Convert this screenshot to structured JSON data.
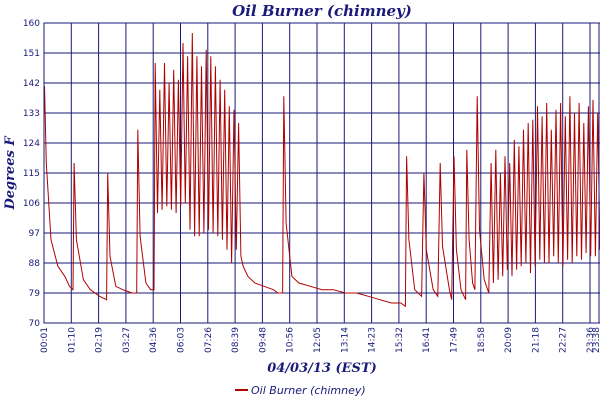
{
  "chart_data": {
    "type": "line",
    "title": "Oil Burner (chimney)",
    "xlabel": "04/03/13 (EST)",
    "ylabel": "Degrees F",
    "ylim": [
      70,
      160
    ],
    "yticks": [
      "70",
      "79",
      "88",
      "97",
      "106",
      "115",
      "124",
      "133",
      "142",
      "151",
      "160"
    ],
    "xticks": [
      "00:01",
      "01:10",
      "02:19",
      "03:27",
      "04:36",
      "06:03",
      "07:26",
      "08:39",
      "09:48",
      "10:56",
      "12:05",
      "13:14",
      "14:23",
      "15:32",
      "16:41",
      "17:49",
      "18:58",
      "20:09",
      "21:18",
      "22:27",
      "23:36",
      "23:38"
    ],
    "grid": true,
    "legend_position": "bottom",
    "series": [
      {
        "name": "Oil Burner (chimney)",
        "color": "#b00000",
        "points": [
          [
            0.02,
            141
          ],
          [
            0.1,
            118
          ],
          [
            0.3,
            95
          ],
          [
            0.6,
            87
          ],
          [
            0.9,
            84
          ],
          [
            1.1,
            81
          ],
          [
            1.25,
            80
          ],
          [
            1.3,
            118
          ],
          [
            1.4,
            95
          ],
          [
            1.7,
            83
          ],
          [
            2.0,
            80
          ],
          [
            2.4,
            78
          ],
          [
            2.7,
            77
          ],
          [
            2.75,
            115
          ],
          [
            2.85,
            90
          ],
          [
            3.1,
            81
          ],
          [
            3.4,
            80
          ],
          [
            3.8,
            79
          ],
          [
            4.0,
            79
          ],
          [
            4.05,
            128
          ],
          [
            4.15,
            96
          ],
          [
            4.4,
            82
          ],
          [
            4.6,
            80
          ],
          [
            4.75,
            80
          ],
          [
            4.8,
            148
          ],
          [
            4.9,
            103
          ],
          [
            5.0,
            140
          ],
          [
            5.1,
            104
          ],
          [
            5.2,
            148
          ],
          [
            5.3,
            105
          ],
          [
            5.4,
            142
          ],
          [
            5.5,
            104
          ],
          [
            5.6,
            146
          ],
          [
            5.7,
            103
          ],
          [
            5.8,
            143
          ],
          [
            5.9,
            105
          ],
          [
            6.0,
            154
          ],
          [
            6.1,
            106
          ],
          [
            6.2,
            150
          ],
          [
            6.3,
            98
          ],
          [
            6.4,
            157
          ],
          [
            6.5,
            96
          ],
          [
            6.6,
            150
          ],
          [
            6.7,
            96
          ],
          [
            6.8,
            147
          ],
          [
            6.9,
            97
          ],
          [
            7.0,
            152
          ],
          [
            7.1,
            98
          ],
          [
            7.2,
            150
          ],
          [
            7.3,
            97
          ],
          [
            7.4,
            147
          ],
          [
            7.5,
            96
          ],
          [
            7.6,
            143
          ],
          [
            7.7,
            95
          ],
          [
            7.8,
            140
          ],
          [
            7.9,
            92
          ],
          [
            8.0,
            135
          ],
          [
            8.1,
            88
          ],
          [
            8.2,
            134
          ],
          [
            8.3,
            92
          ],
          [
            8.4,
            130
          ],
          [
            8.5,
            90
          ],
          [
            8.6,
            87
          ],
          [
            8.8,
            84
          ],
          [
            9.1,
            82
          ],
          [
            9.5,
            81
          ],
          [
            9.9,
            80
          ],
          [
            10.1,
            79
          ],
          [
            10.3,
            79
          ],
          [
            10.35,
            138
          ],
          [
            10.45,
            100
          ],
          [
            10.7,
            84
          ],
          [
            11.0,
            82
          ],
          [
            11.5,
            81
          ],
          [
            12.0,
            80
          ],
          [
            12.5,
            80
          ],
          [
            13.0,
            79
          ],
          [
            13.5,
            79
          ],
          [
            14.0,
            78
          ],
          [
            14.5,
            77
          ],
          [
            15.0,
            76
          ],
          [
            15.4,
            76
          ],
          [
            15.6,
            75
          ],
          [
            15.65,
            120
          ],
          [
            15.75,
            95
          ],
          [
            16.0,
            80
          ],
          [
            16.3,
            78
          ],
          [
            16.4,
            115
          ],
          [
            16.5,
            92
          ],
          [
            16.8,
            80
          ],
          [
            17.0,
            78
          ],
          [
            17.1,
            118
          ],
          [
            17.2,
            93
          ],
          [
            17.5,
            80
          ],
          [
            17.6,
            77
          ],
          [
            17.7,
            120
          ],
          [
            17.8,
            92
          ],
          [
            18.0,
            80
          ],
          [
            18.2,
            77
          ],
          [
            18.25,
            122
          ],
          [
            18.35,
            95
          ],
          [
            18.5,
            82
          ],
          [
            18.6,
            80
          ],
          [
            18.7,
            138
          ],
          [
            18.8,
            98
          ],
          [
            19.0,
            83
          ],
          [
            19.2,
            79
          ],
          [
            19.3,
            118
          ],
          [
            19.4,
            82
          ],
          [
            19.5,
            122
          ],
          [
            19.6,
            83
          ],
          [
            19.7,
            115
          ],
          [
            19.8,
            84
          ],
          [
            19.9,
            120
          ],
          [
            20.0,
            86
          ],
          [
            20.1,
            118
          ],
          [
            20.2,
            84
          ],
          [
            20.3,
            125
          ],
          [
            20.4,
            86
          ],
          [
            20.5,
            123
          ],
          [
            20.6,
            87
          ],
          [
            20.7,
            128
          ],
          [
            20.8,
            88
          ],
          [
            20.9,
            130
          ],
          [
            21.0,
            85
          ],
          [
            21.1,
            131
          ],
          [
            21.2,
            87
          ],
          [
            21.3,
            135
          ],
          [
            21.4,
            89
          ],
          [
            21.5,
            132
          ],
          [
            21.6,
            88
          ],
          [
            21.7,
            136
          ],
          [
            21.8,
            88
          ],
          [
            21.9,
            128
          ],
          [
            22.0,
            90
          ],
          [
            22.1,
            134
          ],
          [
            22.2,
            88
          ],
          [
            22.3,
            136
          ],
          [
            22.4,
            87
          ],
          [
            22.5,
            132
          ],
          [
            22.6,
            89
          ],
          [
            22.7,
            138
          ],
          [
            22.8,
            88
          ],
          [
            22.9,
            133
          ],
          [
            23.0,
            90
          ],
          [
            23.1,
            136
          ],
          [
            23.2,
            89
          ],
          [
            23.3,
            130
          ],
          [
            23.4,
            91
          ],
          [
            23.5,
            135
          ],
          [
            23.6,
            90
          ],
          [
            23.7,
            137
          ],
          [
            23.8,
            90
          ],
          [
            23.9,
            133
          ],
          [
            24.0,
            92
          ]
        ]
      }
    ]
  }
}
